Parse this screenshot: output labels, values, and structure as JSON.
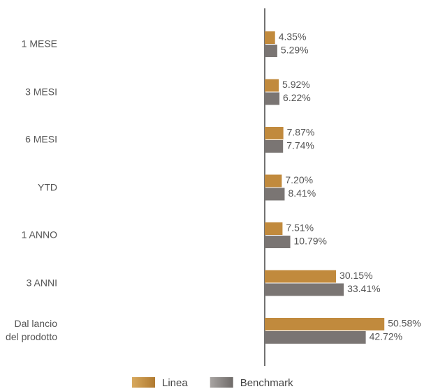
{
  "chart_data": {
    "type": "bar",
    "orientation": "horizontal",
    "categories": [
      "1 MESE",
      "3 MESI",
      "6 MESI",
      "YTD",
      "1 ANNO",
      "3 ANNI",
      "Dal lancio del prodotto"
    ],
    "series": [
      {
        "name": "Linea",
        "color": "#c18a3d",
        "values": [
          4.35,
          5.92,
          7.87,
          7.2,
          7.51,
          30.15,
          50.58
        ],
        "value_labels": [
          "4.35%",
          "5.92%",
          "7.87%",
          "7.20%",
          "7.51%",
          "30.15%",
          "50.58%"
        ]
      },
      {
        "name": "Benchmark",
        "color": "#7a7573",
        "values": [
          5.29,
          6.22,
          7.74,
          8.41,
          10.79,
          33.41,
          42.72
        ],
        "value_labels": [
          "5.29%",
          "6.22%",
          "7.74%",
          "8.41%",
          "10.79%",
          "33.41%",
          "42.72%"
        ]
      }
    ],
    "legend": "bottom"
  }
}
